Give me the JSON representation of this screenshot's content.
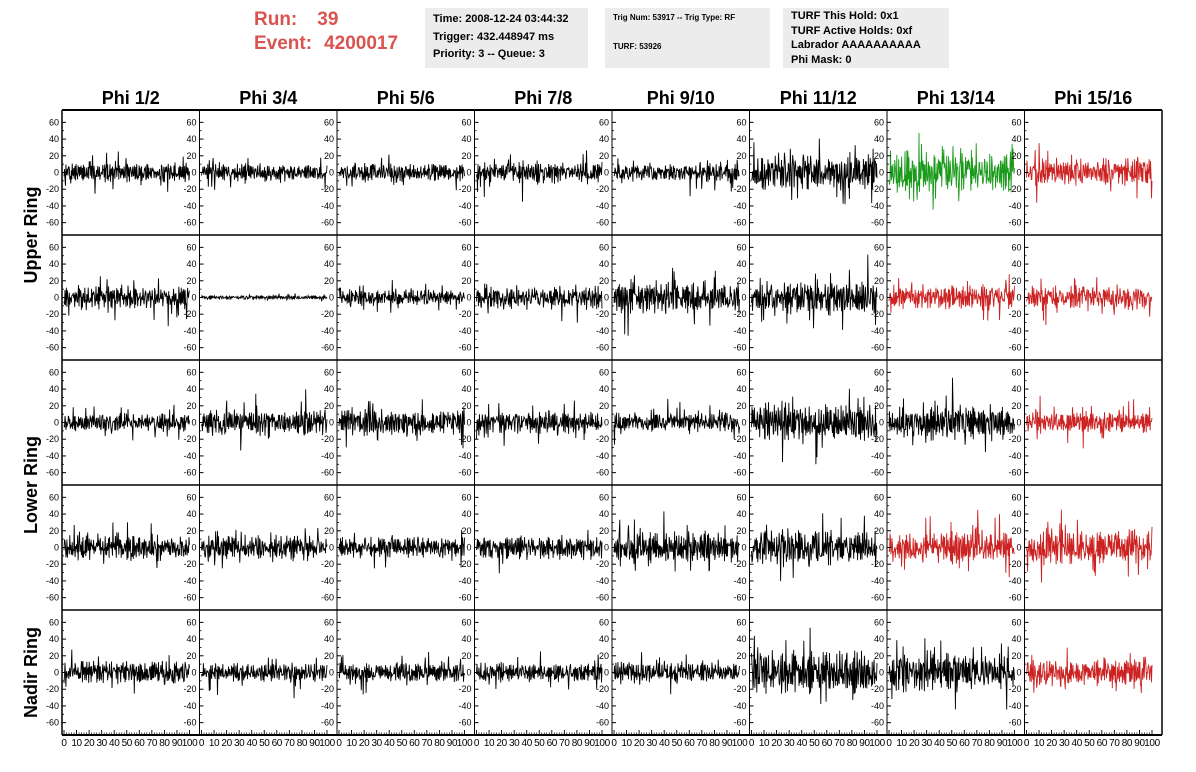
{
  "header": {
    "run_label": "Run:",
    "run_value": "39",
    "event_label": "Event:",
    "event_value": "4200017",
    "time": "Time: 2008-12-24 03:44:32",
    "trigger": "Trigger: 432.448947 ms",
    "priority": "Priority: 3 -- Queue: 3",
    "trig_num": "Trig Num: 53917 -- Trig Type: RF",
    "turf": "TURF: 53926",
    "turf_this_hold": "TURF This Hold: 0x1",
    "turf_active_holds": "TURF Active Holds: 0xf",
    "labrador": "Labrador AAAAAAAAAA",
    "phi_mask": "Phi Mask: 0"
  },
  "colors": {
    "run_text": "#d9534f",
    "trace_default": "#000000",
    "trace_green": "#1a9a1a",
    "trace_red": "#cc2222",
    "info_box": "#ececec"
  },
  "chart_data": {
    "type": "line",
    "columns": [
      "Phi 1/2",
      "Phi 3/4",
      "Phi 5/6",
      "Phi 7/8",
      "Phi 9/10",
      "Phi 11/12",
      "Phi 13/14",
      "Phi 15/16"
    ],
    "row_labels": [
      "Upper Ring",
      "Lower Ring",
      "Nadir Ring"
    ],
    "ylim": [
      -70,
      70
    ],
    "yticks": [
      60,
      40,
      20,
      0,
      -20,
      -40,
      -60
    ],
    "xlim": [
      0,
      100
    ],
    "xticks": [
      0,
      10,
      20,
      30,
      40,
      50,
      60,
      70,
      80,
      90,
      100
    ],
    "panels": [
      [
        {
          "amp": 11,
          "color": "black"
        },
        {
          "amp": 10,
          "color": "black"
        },
        {
          "amp": 11,
          "color": "black"
        },
        {
          "amp": 13,
          "color": "black"
        },
        {
          "amp": 11,
          "color": "black"
        },
        {
          "amp": 20,
          "color": "black"
        },
        {
          "amp": 24,
          "color": "green"
        },
        {
          "amp": 17,
          "color": "red"
        }
      ],
      [
        {
          "amp": 14,
          "color": "black"
        },
        {
          "amp": 2.5,
          "color": "black"
        },
        {
          "amp": 9,
          "color": "black"
        },
        {
          "amp": 14,
          "color": "black"
        },
        {
          "amp": 19,
          "color": "black"
        },
        {
          "amp": 20,
          "color": "black"
        },
        {
          "amp": 14,
          "color": "red"
        },
        {
          "amp": 15,
          "color": "red"
        }
      ],
      [
        {
          "amp": 11,
          "color": "black"
        },
        {
          "amp": 15,
          "color": "black"
        },
        {
          "amp": 15,
          "color": "black"
        },
        {
          "amp": 13,
          "color": "black"
        },
        {
          "amp": 11,
          "color": "black"
        },
        {
          "amp": 22,
          "color": "black"
        },
        {
          "amp": 20,
          "color": "black"
        },
        {
          "amp": 13,
          "color": "red"
        }
      ],
      [
        {
          "amp": 14,
          "color": "black"
        },
        {
          "amp": 14,
          "color": "black"
        },
        {
          "amp": 12,
          "color": "black"
        },
        {
          "amp": 14,
          "color": "black"
        },
        {
          "amp": 17,
          "color": "black"
        },
        {
          "amp": 22,
          "color": "black"
        },
        {
          "amp": 18,
          "color": "red"
        },
        {
          "amp": 19,
          "color": "red"
        }
      ],
      [
        {
          "amp": 13,
          "color": "black"
        },
        {
          "amp": 11,
          "color": "black"
        },
        {
          "amp": 11,
          "color": "black"
        },
        {
          "amp": 12,
          "color": "black"
        },
        {
          "amp": 12,
          "color": "black"
        },
        {
          "amp": 26,
          "color": "black"
        },
        {
          "amp": 22,
          "color": "black"
        },
        {
          "amp": 15,
          "color": "red"
        }
      ]
    ]
  }
}
